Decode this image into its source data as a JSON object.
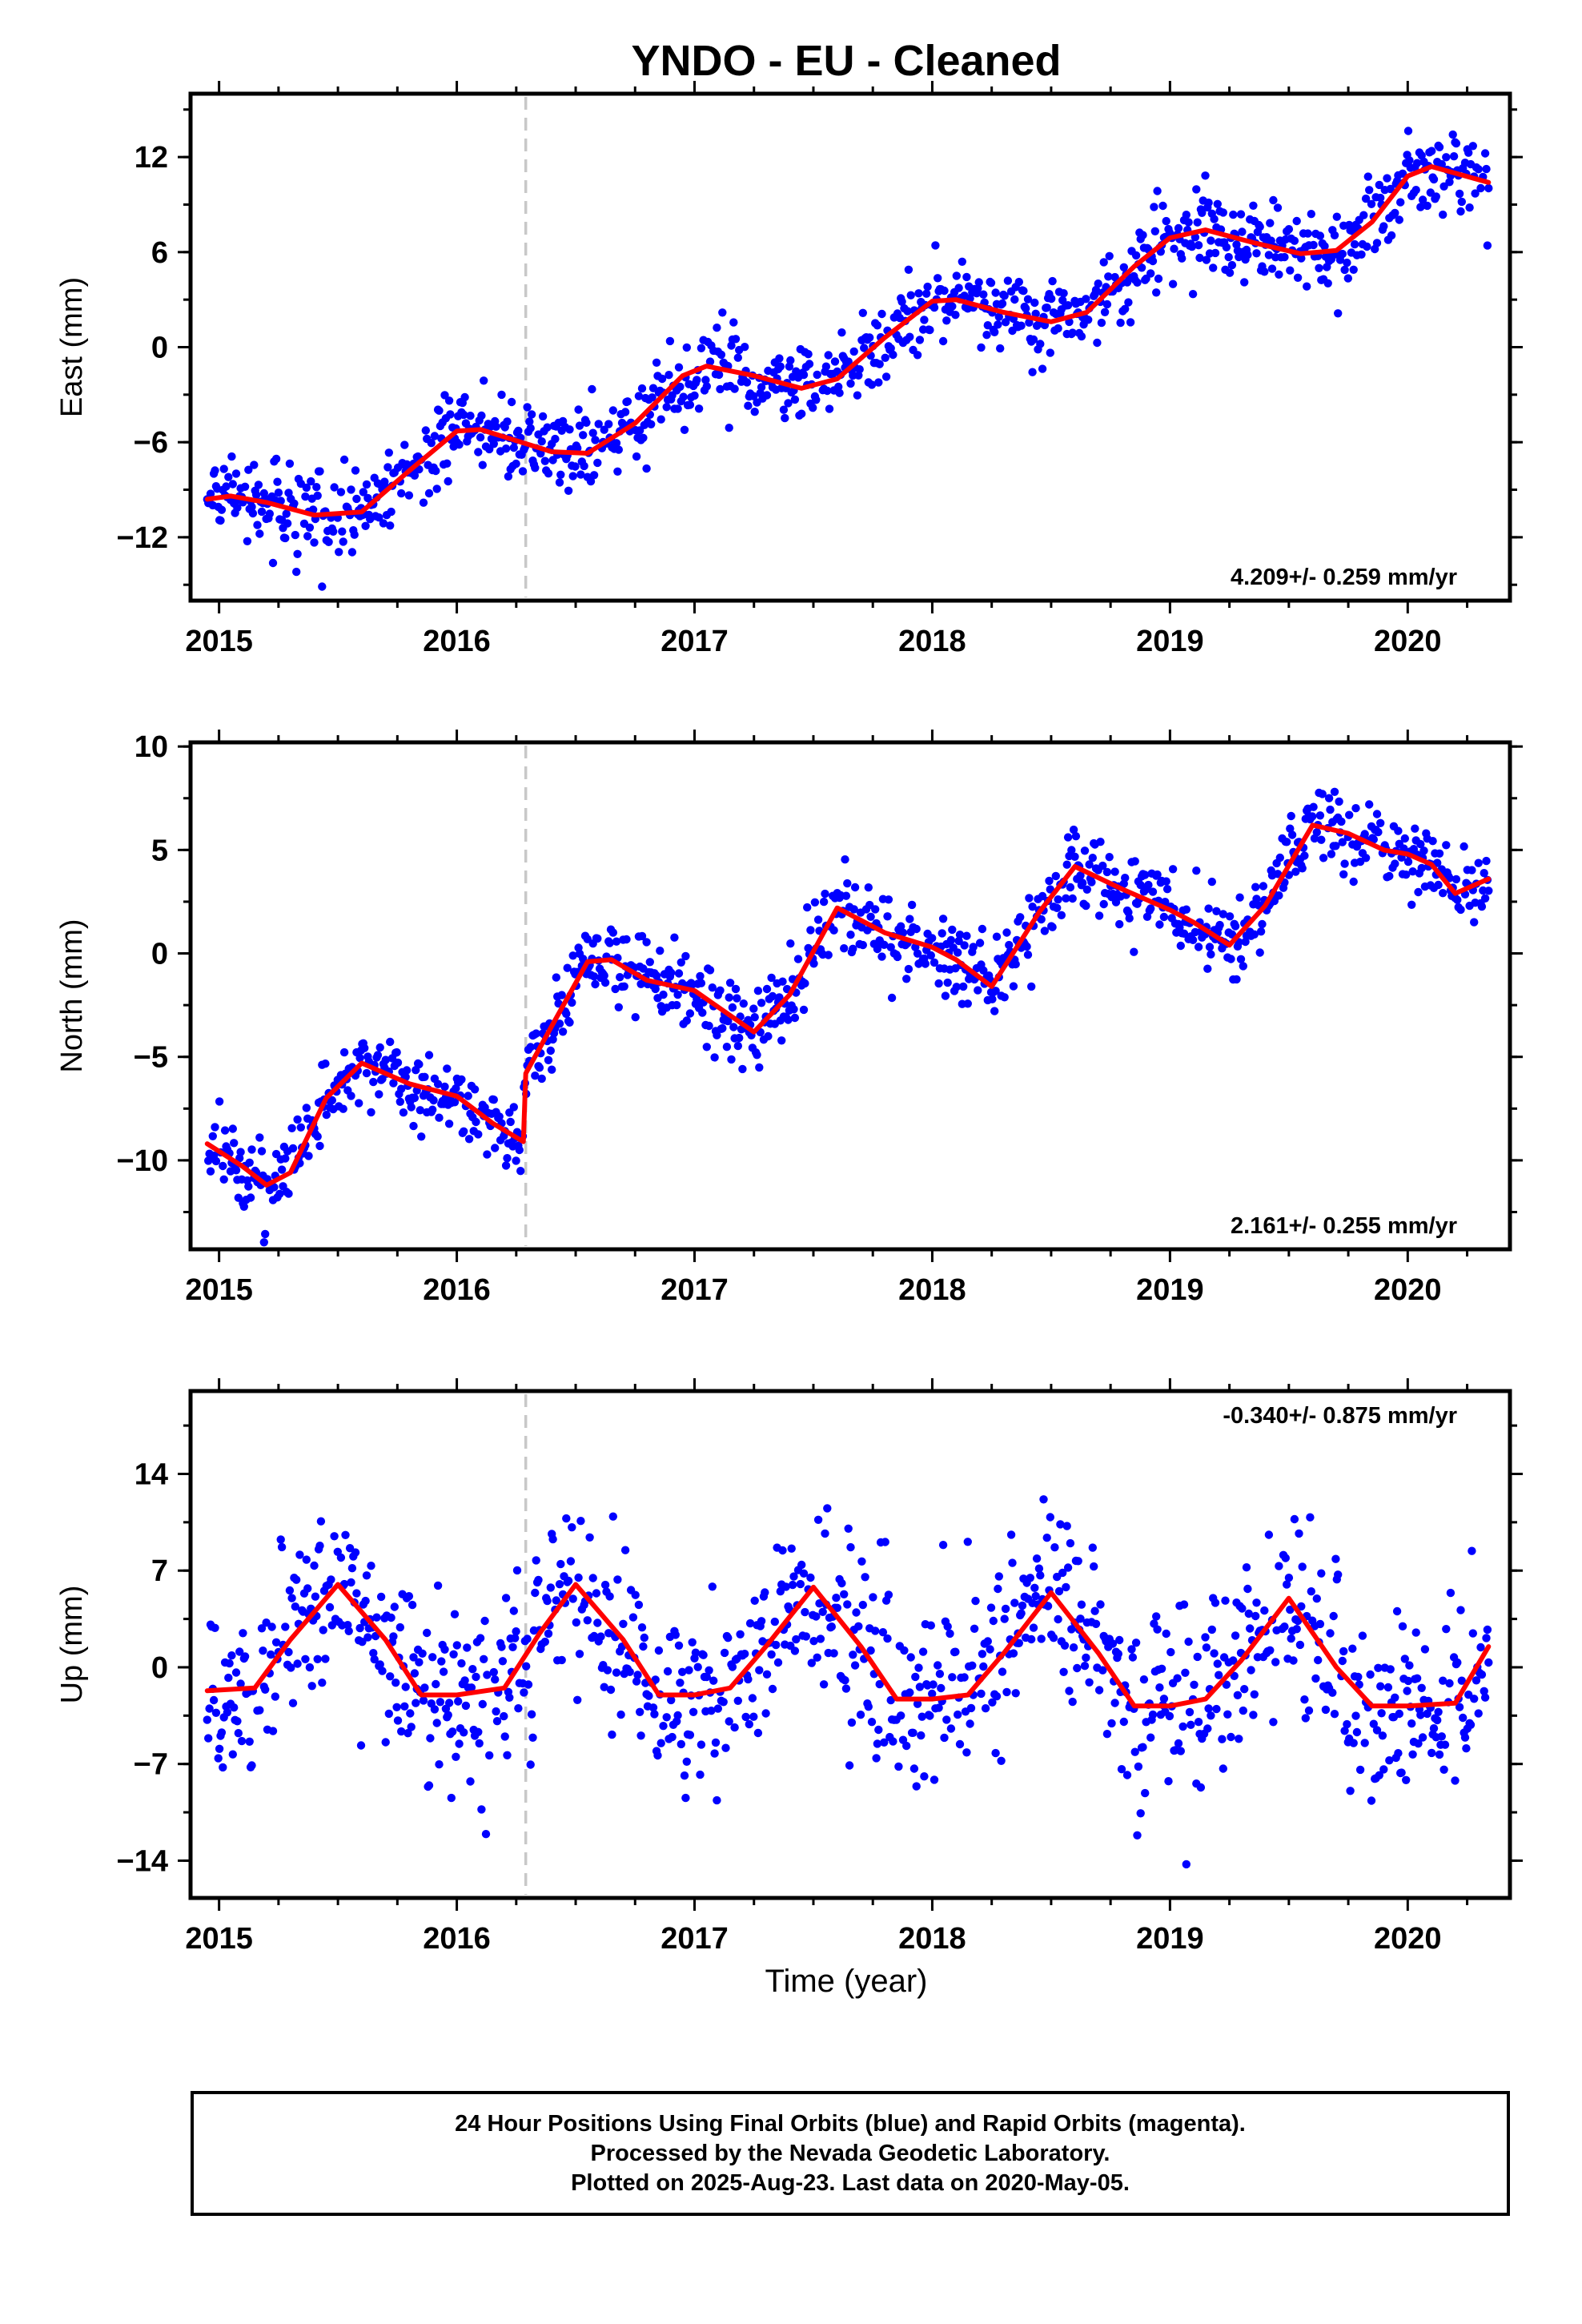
{
  "title": "YNDO  - EU - Cleaned",
  "xlabel": "Time (year)",
  "caption": {
    "line1": "24 Hour Positions Using Final Orbits (blue) and Rapid Orbits (magenta).",
    "line2": "Processed by the Nevada Geodetic Laboratory.",
    "line3": "Plotted on 2025-Aug-23. Last data on 2020-May-05."
  },
  "colors": {
    "points": "#0000ff",
    "model": "#ff0000",
    "break_line": "#c8c8c8",
    "frame": "#000000"
  },
  "chart_data": [
    {
      "type": "scatter",
      "ylabel": "East (mm)",
      "xlim": [
        2014.88,
        2020.43
      ],
      "ylim": [
        -16,
        16
      ],
      "yticks": [
        -12,
        -6,
        0,
        6,
        12
      ],
      "xticks": [
        2015,
        2016,
        2017,
        2018,
        2019,
        2020
      ],
      "rate_text": "4.209+/- 0.259 mm/yr",
      "rate_position": "bottom-right",
      "break_line_x": 2016.29,
      "data_range": [
        2014.95,
        2020.34
      ],
      "scatter_sd": 1.3,
      "model_line": {
        "x": [
          2014.95,
          2015.05,
          2015.2,
          2015.4,
          2015.6,
          2015.8,
          2016.0,
          2016.1,
          2016.25,
          2016.4,
          2016.55,
          2016.75,
          2016.95,
          2017.05,
          2017.25,
          2017.45,
          2017.6,
          2017.8,
          2018.0,
          2018.1,
          2018.3,
          2018.5,
          2018.65,
          2018.85,
          2019.0,
          2019.15,
          2019.35,
          2019.55,
          2019.7,
          2019.85,
          2020.0,
          2020.1,
          2020.34
        ],
        "y": [
          -9.6,
          -9.4,
          -9.8,
          -10.6,
          -10.4,
          -7.8,
          -5.3,
          -5.2,
          -5.9,
          -6.6,
          -6.7,
          -4.8,
          -1.8,
          -1.2,
          -1.8,
          -2.6,
          -2.0,
          0.6,
          2.9,
          3.0,
          2.2,
          1.6,
          2.2,
          5.1,
          6.9,
          7.4,
          6.6,
          5.9,
          6.1,
          7.9,
          10.8,
          11.4,
          10.4
        ]
      }
    },
    {
      "type": "scatter",
      "ylabel": "North (mm)",
      "xlim": [
        2014.88,
        2020.43
      ],
      "ylim": [
        -14.3,
        10.2
      ],
      "yticks": [
        -10,
        -5,
        0,
        5,
        10
      ],
      "xticks": [
        2015,
        2016,
        2017,
        2018,
        2019,
        2020
      ],
      "rate_text": "2.161+/- 0.255 mm/yr",
      "rate_position": "bottom-right",
      "break_line_x": 2016.29,
      "data_range": [
        2014.95,
        2020.34
      ],
      "scatter_sd": 0.95,
      "model_line": {
        "x": [
          2014.95,
          2015.1,
          2015.2,
          2015.3,
          2015.45,
          2015.6,
          2015.8,
          2016.0,
          2016.15,
          2016.28,
          2016.29,
          2016.4,
          2016.55,
          2016.65,
          2016.8,
          2017.0,
          2017.1,
          2017.25,
          2017.4,
          2017.6,
          2017.8,
          2018.0,
          2018.1,
          2018.25,
          2018.45,
          2018.6,
          2018.8,
          2019.0,
          2019.1,
          2019.25,
          2019.4,
          2019.6,
          2019.75,
          2019.9,
          2020.0,
          2020.1,
          2020.2,
          2020.34
        ],
        "y": [
          -9.2,
          -10.3,
          -11.2,
          -10.6,
          -7.0,
          -5.3,
          -6.3,
          -6.9,
          -8.2,
          -9.1,
          -5.8,
          -3.5,
          -0.4,
          -0.3,
          -1.3,
          -1.8,
          -2.6,
          -3.8,
          -2.0,
          2.2,
          1.0,
          0.3,
          -0.3,
          -1.6,
          2.0,
          4.2,
          3.1,
          2.1,
          1.5,
          0.4,
          2.3,
          6.2,
          5.8,
          5.0,
          4.8,
          4.3,
          2.9,
          3.6
        ]
      }
    },
    {
      "type": "scatter",
      "ylabel": "Up (mm)",
      "xlim": [
        2014.88,
        2020.43
      ],
      "ylim": [
        -16.7,
        20
      ],
      "yticks": [
        -14,
        -7,
        0,
        7,
        14
      ],
      "xticks": [
        2015,
        2016,
        2017,
        2018,
        2019,
        2020
      ],
      "rate_text": "-0.340+/- 0.875 mm/yr",
      "rate_position": "top-right",
      "break_line_x": 2016.29,
      "data_range": [
        2014.95,
        2020.34
      ],
      "scatter_sd": 3.4,
      "model_line": {
        "x": [
          2014.95,
          2015.15,
          2015.3,
          2015.5,
          2015.7,
          2015.85,
          2016.0,
          2016.2,
          2016.35,
          2016.5,
          2016.7,
          2016.85,
          2017.0,
          2017.15,
          2017.3,
          2017.5,
          2017.7,
          2017.85,
          2018.0,
          2018.15,
          2018.3,
          2018.5,
          2018.7,
          2018.85,
          2019.0,
          2019.15,
          2019.3,
          2019.5,
          2019.7,
          2019.85,
          2020.0,
          2020.2,
          2020.34
        ],
        "y": [
          -1.7,
          -1.5,
          2.0,
          6.0,
          2.0,
          -2.0,
          -2.0,
          -1.5,
          2.5,
          6.0,
          2.0,
          -2.0,
          -2.0,
          -1.5,
          1.5,
          5.8,
          1.5,
          -2.3,
          -2.3,
          -2.0,
          1.0,
          5.4,
          1.0,
          -2.8,
          -2.8,
          -2.3,
          0.5,
          5.0,
          0.0,
          -2.8,
          -2.8,
          -2.6,
          1.5
        ]
      }
    }
  ]
}
